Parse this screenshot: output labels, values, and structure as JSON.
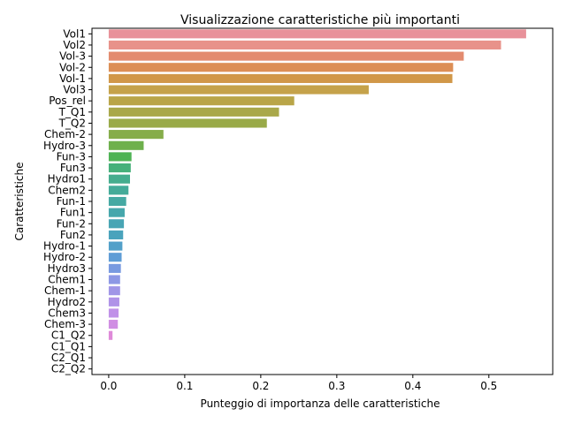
{
  "chart_data": {
    "type": "bar",
    "orientation": "horizontal",
    "title": "Visualizzazione caratteristiche più importanti",
    "xlabel": "Punteggio di importanza delle caratteristiche",
    "ylabel": "Caratteristiche",
    "xlim": [
      -0.022,
      0.584
    ],
    "xticks": [
      0.0,
      0.1,
      0.2,
      0.3,
      0.4,
      0.5
    ],
    "xtick_labels": [
      "0.0",
      "0.1",
      "0.2",
      "0.3",
      "0.4",
      "0.5"
    ],
    "grid": false,
    "legend": "none",
    "categories": [
      "Vol1",
      "Vol2",
      "Vol-3",
      "Vol-2",
      "Vol-1",
      "Vol3",
      "Pos_rel",
      "T_Q1",
      "T_Q2",
      "Chem-2",
      "Hydro-3",
      "Fun-3",
      "Fun3",
      "Hydro1",
      "Chem2",
      "Fun-1",
      "Fun1",
      "Fun-2",
      "Fun2",
      "Hydro-1",
      "Hydro-2",
      "Hydro3",
      "Chem1",
      "Chem-1",
      "Hydro2",
      "Chem3",
      "Chem-3",
      "C1_Q2",
      "C1_Q1",
      "C2_Q1",
      "C2_Q2"
    ],
    "values": [
      0.549,
      0.516,
      0.467,
      0.453,
      0.452,
      0.342,
      0.244,
      0.224,
      0.208,
      0.072,
      0.046,
      0.03,
      0.029,
      0.028,
      0.026,
      0.023,
      0.021,
      0.02,
      0.019,
      0.018,
      0.017,
      0.016,
      0.015,
      0.015,
      0.014,
      0.013,
      0.012,
      0.005,
      0.0,
      0.0,
      0.0
    ],
    "colors": [
      "#e8919a",
      "#e8928a",
      "#e38b6f",
      "#dc8e55",
      "#d19748",
      "#c5a24a",
      "#b9a548",
      "#a9a84a",
      "#99aa48",
      "#86ad4a",
      "#6eb04c",
      "#4eb354",
      "#46b07a",
      "#45ad8e",
      "#44ab99",
      "#45a9a3",
      "#46a7ac",
      "#48a5b4",
      "#4aa3bc",
      "#52a0c9",
      "#5f9dd6",
      "#789ae0",
      "#8d98e5",
      "#a096e7",
      "#b093e8",
      "#c091e8",
      "#d08ee3",
      "#df8ad9",
      "#e68dc6",
      "#e88fb4",
      "#e890a6"
    ]
  }
}
